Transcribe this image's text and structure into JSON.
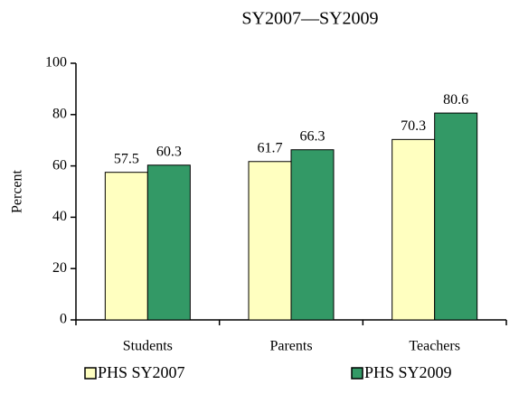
{
  "chart_data": {
    "type": "bar",
    "title": "SY2007—SY2009",
    "y_label": "Percent",
    "categories": [
      "Students",
      "Parents",
      "Teachers"
    ],
    "series": [
      {
        "name": "PHS SY2007",
        "color": "#ffffc0",
        "values": [
          57.5,
          61.7,
          70.3
        ]
      },
      {
        "name": "PHS SY2009",
        "color": "#339966",
        "values": [
          60.3,
          66.3,
          80.6
        ]
      }
    ],
    "ylim": [
      0,
      100
    ],
    "yticks": [
      0,
      20,
      40,
      60,
      80,
      100
    ],
    "grid": false,
    "legend": "bottom"
  }
}
